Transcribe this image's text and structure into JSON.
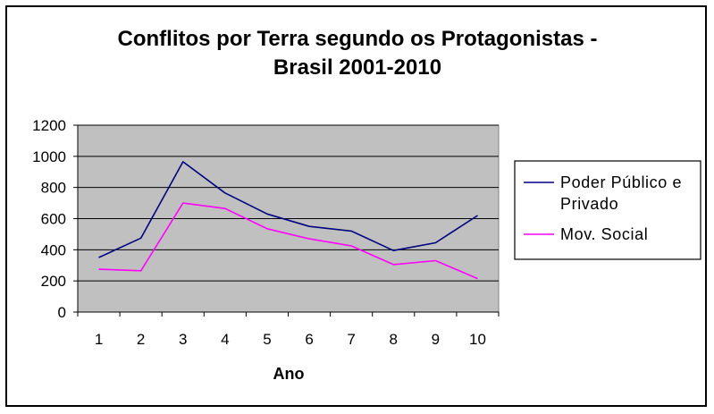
{
  "chart_data": {
    "type": "line",
    "title_lines": [
      "Conflitos por Terra segundo os Protagonistas -",
      "Brasil 2001-2010"
    ],
    "xlabel": "Ano",
    "ylabel": "",
    "categories": [
      "1",
      "2",
      "3",
      "4",
      "5",
      "6",
      "7",
      "8",
      "9",
      "10"
    ],
    "ylim": [
      0,
      1200
    ],
    "yticks": [
      0,
      200,
      400,
      600,
      800,
      1000,
      1200
    ],
    "grid": true,
    "plot_background": "#c0c0c0",
    "legend_position": "right",
    "series": [
      {
        "name_lines": [
          "Poder Público e",
          "Privado"
        ],
        "color": "#000080",
        "values": [
          350,
          475,
          965,
          765,
          630,
          550,
          520,
          395,
          445,
          620
        ]
      },
      {
        "name_lines": [
          "Mov. Social"
        ],
        "color": "#ff00ff",
        "values": [
          275,
          265,
          700,
          665,
          535,
          470,
          425,
          305,
          330,
          215
        ]
      }
    ]
  }
}
